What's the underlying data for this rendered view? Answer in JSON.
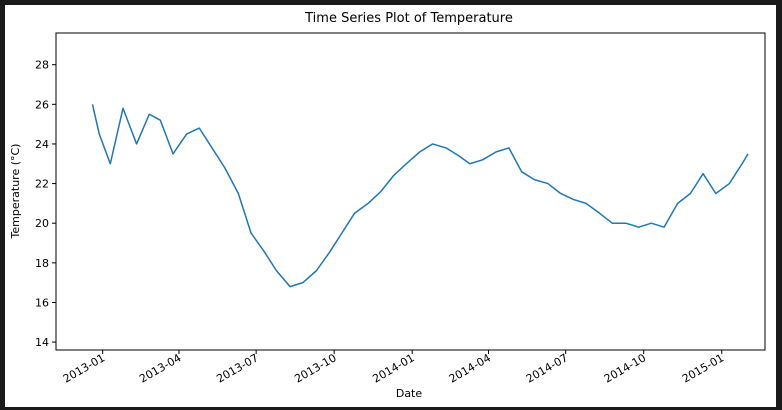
{
  "chart_data": {
    "type": "line",
    "title": "Time Series Plot of Temperature",
    "xlabel": "Date",
    "ylabel": "Temperature (°C)",
    "x_tick_labels": [
      "2013-01",
      "2013-04",
      "2013-07",
      "2013-10",
      "2014-01",
      "2014-04",
      "2014-07",
      "2014-10",
      "2015-01"
    ],
    "y_ticks": [
      14,
      16,
      18,
      20,
      22,
      24,
      26,
      28
    ],
    "xlim": [
      "2012-11-07",
      "2015-02-21"
    ],
    "ylim": [
      13.6,
      29.6
    ],
    "grid": false,
    "line_color": "#1f77b4",
    "series": [
      {
        "x": [
          "2012-12-20",
          "2012-12-28",
          "2013-01-10",
          "2013-01-25",
          "2013-02-10",
          "2013-02-25",
          "2013-03-10",
          "2013-03-25",
          "2013-04-10",
          "2013-04-25",
          "2013-05-10",
          "2013-05-25",
          "2013-06-10",
          "2013-06-25",
          "2013-07-10",
          "2013-07-25",
          "2013-08-10",
          "2013-08-25",
          "2013-09-10",
          "2013-09-25",
          "2013-10-10",
          "2013-10-25",
          "2013-11-10",
          "2013-11-25",
          "2013-12-10",
          "2013-12-25",
          "2014-01-10",
          "2014-01-25",
          "2014-02-10",
          "2014-02-25",
          "2014-03-10",
          "2014-03-25",
          "2014-04-10",
          "2014-04-25",
          "2014-05-10",
          "2014-05-25",
          "2014-06-10",
          "2014-06-25",
          "2014-07-10",
          "2014-07-25",
          "2014-08-10",
          "2014-08-25",
          "2014-09-10",
          "2014-09-25",
          "2014-10-10",
          "2014-10-25",
          "2014-11-10",
          "2014-11-25",
          "2014-12-10",
          "2014-12-25",
          "2015-01-10",
          "2015-01-25",
          "2015-02-01"
        ],
        "y": [
          26.0,
          24.5,
          23.0,
          25.8,
          24.0,
          25.5,
          25.2,
          23.5,
          24.5,
          24.8,
          23.8,
          22.8,
          21.5,
          19.5,
          18.6,
          17.6,
          16.8,
          17.0,
          17.6,
          18.5,
          19.5,
          20.5,
          21.0,
          21.6,
          22.4,
          23.0,
          23.6,
          24.0,
          23.8,
          23.4,
          23.0,
          23.2,
          23.6,
          23.8,
          22.6,
          22.2,
          22.0,
          21.5,
          21.2,
          21.0,
          20.5,
          20.0,
          20.0,
          19.8,
          20.0,
          19.8,
          21.0,
          21.5,
          22.5,
          21.5,
          22.0,
          23.0,
          23.5
        ]
      }
    ]
  }
}
